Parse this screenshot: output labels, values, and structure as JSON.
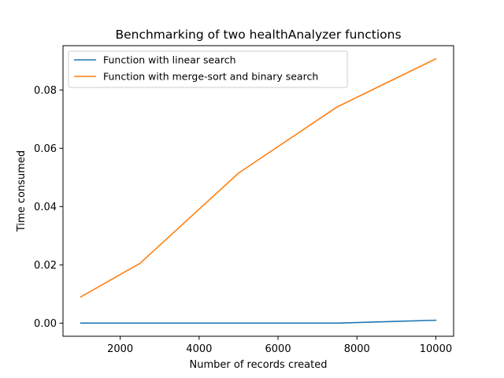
{
  "chart_data": {
    "type": "line",
    "title": "Benchmarking of two healthAnalyzer functions",
    "xlabel": "Number of records created",
    "ylabel": "Time consumed",
    "xlim": [
      550,
      10450
    ],
    "ylim": [
      -0.0045,
      0.0952
    ],
    "xticks": [
      2000,
      4000,
      6000,
      8000,
      10000
    ],
    "yticks": [
      0.0,
      0.02,
      0.04,
      0.06,
      0.08
    ],
    "xtick_labels": [
      "2000",
      "4000",
      "6000",
      "8000",
      "10000"
    ],
    "ytick_labels": [
      "0.00",
      "0.02",
      "0.04",
      "0.06",
      "0.08"
    ],
    "grid": false,
    "legend_position": "upper-left",
    "series": [
      {
        "name": "Function with linear search",
        "color": "#1f77b4",
        "x": [
          1000,
          2500,
          5000,
          7500,
          10000
        ],
        "y": [
          0.0,
          0.0,
          0.0,
          0.0,
          0.001
        ]
      },
      {
        "name": "Function with merge-sort and binary search",
        "color": "#ff7f0e",
        "x": [
          1000,
          2500,
          5000,
          7500,
          10000
        ],
        "y": [
          0.009,
          0.0205,
          0.0515,
          0.0742,
          0.0907
        ]
      }
    ]
  }
}
